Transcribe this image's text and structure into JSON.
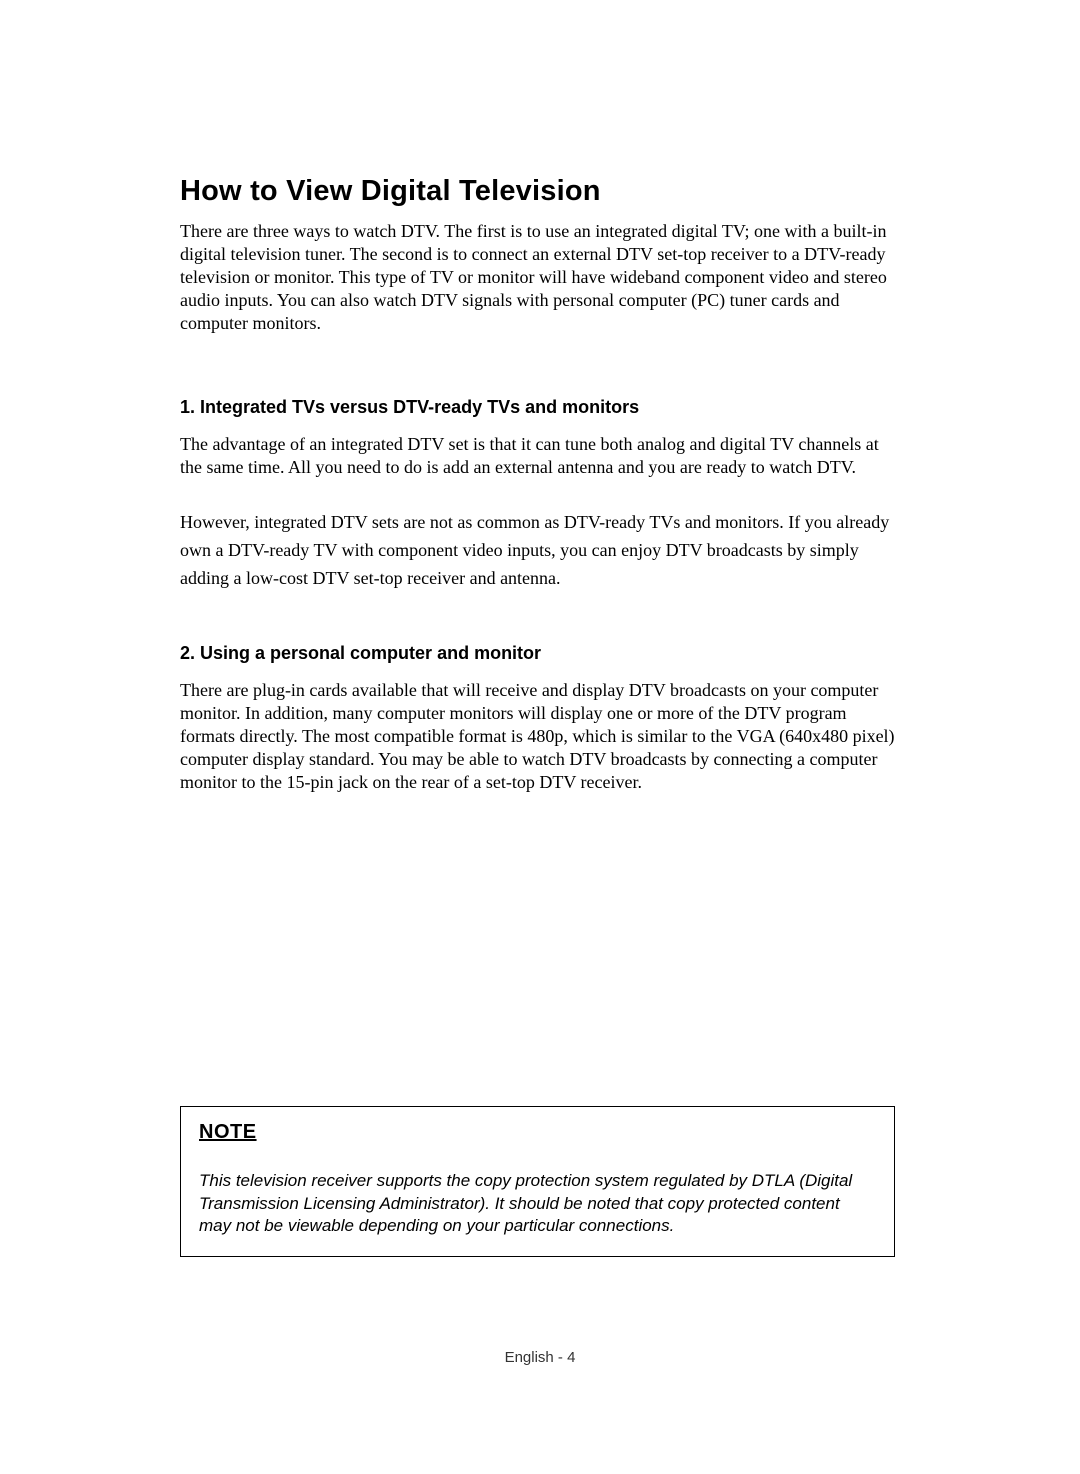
{
  "title": "How to View Digital Television",
  "intro": "There are three ways to watch DTV. The first is to use an integrated digital TV; one with a built-in digital television tuner. The second is to connect an external DTV set-top receiver to a DTV-ready television or monitor. This type of TV or monitor will have wideband component video and stereo audio inputs. You can also watch DTV signals with personal computer (PC) tuner cards and computer monitors.",
  "section1": {
    "heading": "1. Integrated TVs versus DTV-ready TVs and monitors",
    "p1": "The advantage of an integrated DTV set is that it can tune both analog and digital TV channels at the same time. All you need to do is add an external antenna and you are ready to watch DTV.",
    "p2": "However, integrated DTV sets are not as common as DTV-ready TVs and monitors. If you already own a DTV-ready TV with component video inputs, you can enjoy DTV broadcasts by simply adding a low-cost DTV set-top receiver and antenna."
  },
  "section2": {
    "heading": "2. Using a personal computer and monitor",
    "p1": "There are plug-in cards available that will receive and display DTV broadcasts on your computer monitor. In addition, many computer monitors will display one or more of the DTV program formats directly. The most compatible format is 480p, which is similar to the VGA (640x480 pixel) computer display standard. You may be able to watch DTV broadcasts by connecting a computer monitor to the 15-pin jack on the rear of a set-top DTV receiver."
  },
  "note": {
    "label": "NOTE",
    "text": "This television receiver supports the copy protection system regulated by DTLA (Digital Transmission Licensing Administrator). It should be noted that copy protected content may not be viewable depending on your particular connections."
  },
  "footer": "English - 4"
}
